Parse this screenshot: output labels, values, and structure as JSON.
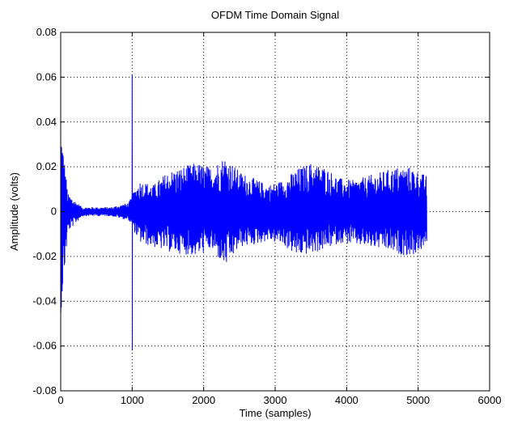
{
  "chart_data": {
    "type": "line",
    "title": "OFDM Time Domain Signal",
    "xlabel": "Time (samples)",
    "ylabel": "Amplitude (volts)",
    "xlim": [
      0,
      6000
    ],
    "ylim": [
      -0.08,
      0.08
    ],
    "xticks": [
      0,
      1000,
      2000,
      3000,
      4000,
      5000,
      6000
    ],
    "xtick_labels": [
      "0",
      "1000",
      "2000",
      "3000",
      "4000",
      "5000",
      "6000"
    ],
    "yticks": [
      0.08,
      0.06,
      0.04,
      0.02,
      0,
      -0.02,
      -0.04,
      -0.06,
      -0.08
    ],
    "ytick_labels": [
      "0.08",
      "0.06",
      "0.04",
      "0.02",
      "0",
      "-0.02",
      "-0.04",
      "-0.06",
      "-0.08"
    ],
    "grid": true,
    "series_color": "#0000ff",
    "series": [
      {
        "x_range": [
          0,
          5120
        ],
        "peaks": [
          {
            "x": 0,
            "max": 0.04,
            "min": -0.045
          },
          {
            "x": 1000,
            "max": 0.061,
            "min": -0.062
          }
        ],
        "envelope_max": [
          [
            0,
            0.04
          ],
          [
            100,
            0.008
          ],
          [
            300,
            0.002
          ],
          [
            700,
            0.002
          ],
          [
            950,
            0.004
          ],
          [
            1100,
            0.014
          ],
          [
            1300,
            0.012
          ],
          [
            1500,
            0.018
          ],
          [
            1700,
            0.02
          ],
          [
            1900,
            0.022
          ],
          [
            2100,
            0.02
          ],
          [
            2300,
            0.025
          ],
          [
            2500,
            0.018
          ],
          [
            2700,
            0.015
          ],
          [
            2900,
            0.012
          ],
          [
            3100,
            0.014
          ],
          [
            3300,
            0.019
          ],
          [
            3500,
            0.022
          ],
          [
            3700,
            0.02
          ],
          [
            3900,
            0.015
          ],
          [
            4100,
            0.014
          ],
          [
            4300,
            0.016
          ],
          [
            4500,
            0.018
          ],
          [
            4700,
            0.02
          ],
          [
            4900,
            0.02
          ],
          [
            5120,
            0.016
          ]
        ],
        "envelope_min": [
          [
            0,
            -0.045
          ],
          [
            100,
            -0.009
          ],
          [
            300,
            -0.002
          ],
          [
            700,
            -0.002
          ],
          [
            950,
            -0.004
          ],
          [
            1100,
            -0.014
          ],
          [
            1300,
            -0.016
          ],
          [
            1500,
            -0.018
          ],
          [
            1700,
            -0.019
          ],
          [
            1900,
            -0.02
          ],
          [
            2100,
            -0.017
          ],
          [
            2300,
            -0.025
          ],
          [
            2500,
            -0.016
          ],
          [
            2700,
            -0.015
          ],
          [
            2900,
            -0.013
          ],
          [
            3100,
            -0.015
          ],
          [
            3300,
            -0.02
          ],
          [
            3500,
            -0.019
          ],
          [
            3700,
            -0.017
          ],
          [
            3900,
            -0.014
          ],
          [
            4100,
            -0.015
          ],
          [
            4300,
            -0.016
          ],
          [
            4500,
            -0.017
          ],
          [
            4700,
            -0.019
          ],
          [
            4900,
            -0.02
          ],
          [
            5120,
            -0.016
          ]
        ]
      }
    ]
  }
}
